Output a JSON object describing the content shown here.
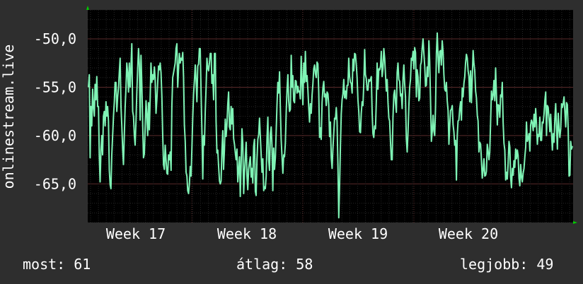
{
  "y_axis_title": "onlinestream.live",
  "stats": {
    "current": "most: 61",
    "average": "átlag: 58",
    "best": "legjobb: 49"
  },
  "colors": {
    "background": "#2e2e2e",
    "plot_background": "#000000",
    "line": "#7ff3b5",
    "grid_minor": "#262626",
    "grid_major": "#5a2a2a",
    "text": "#ffffff",
    "arrow": "#00cc00"
  },
  "chart_data": {
    "type": "line",
    "title": "",
    "xlabel": "",
    "ylabel": "onlinestream.live",
    "x_tick_labels": [
      "Week 17",
      "Week 18",
      "Week 19",
      "Week 20"
    ],
    "y_tick_labels": [
      "-50,0",
      "-55,0",
      "-60,0",
      "-65,0"
    ],
    "y_ticks": [
      -50,
      -55,
      -60,
      -65
    ],
    "ylim": [
      -69,
      -47
    ],
    "grid": true,
    "series": [
      {
        "name": "",
        "values": [
          -55,
          -53.7,
          -62.3,
          -57,
          -59,
          -55.2,
          -57,
          -58,
          -54.7,
          -56.3,
          -53.9,
          -57,
          -57,
          -62,
          -64.8,
          -61.5,
          -60,
          -62,
          -58,
          -57.5,
          -59,
          -56.5,
          -58,
          -57,
          -58.5,
          -63.6,
          -65.1,
          -65.5,
          -62,
          -60,
          -58,
          -56.5,
          -54.5,
          -54.5,
          -57.5,
          -56,
          -55,
          -53.5,
          -52,
          -57,
          -59,
          -61.5,
          -63,
          -60,
          -57,
          -55,
          -52.5,
          -53.5,
          -55.5,
          -52.5,
          -55,
          -53,
          -50.5,
          -57.5,
          -58,
          -60,
          -61,
          -58.5,
          -55.5,
          -53,
          -51,
          -52.6,
          -58.4,
          -51.7,
          -54.8,
          -58.9,
          -62.3,
          -61.9,
          -59.1,
          -56.4,
          -57.9,
          -60,
          -56.6,
          -59.4,
          -56,
          -52.5,
          -54.5,
          -53.7,
          -54.2,
          -52.9,
          -54.1,
          -57.7,
          -56.3,
          -54.5,
          -52.8,
          -53.2,
          -52.5,
          -53.5,
          -56,
          -60,
          -63,
          -63.5,
          -61,
          -62.5,
          -63.9,
          -64,
          -62,
          -62.5,
          -61.7,
          -63.6,
          -57,
          -54,
          -53.5,
          -53,
          -52.5,
          -51,
          -50.5,
          -55,
          -53,
          -51.5,
          -52.5,
          -52,
          -52.2,
          -51.4,
          -53.9,
          -58.9,
          -60.6,
          -63.8,
          -64.2,
          -65.7,
          -66,
          -65,
          -63.2,
          -64.2,
          -61.4,
          -58.2,
          -55.7,
          -54.3,
          -52.7,
          -54.2,
          -56.5,
          -52.8,
          -52.6,
          -51,
          -51,
          -55.5,
          -59.5,
          -64.5,
          -60,
          -61,
          -57.5,
          -55,
          -52,
          -53,
          -53.3,
          -52.5,
          -51.5,
          -51.5,
          -54.6,
          -53.7,
          -56.3,
          -51.5,
          -51.5,
          -58.5,
          -61.8,
          -61.5,
          -63.2,
          -64.7,
          -65,
          -64.7,
          -61.5,
          -59.5,
          -63.5,
          -61.5,
          -58.3,
          -60.1,
          -58.8,
          -56.8,
          -55.5,
          -59.1,
          -59.4,
          -57,
          -58.8,
          -57.2,
          -60.3,
          -60.9,
          -61.8,
          -62.5,
          -61.4,
          -64.8,
          -63.6,
          -62.2,
          -66.3,
          -63,
          -59.3,
          -60.9,
          -66,
          -64,
          -62.3,
          -60.7,
          -64.2,
          -65.6,
          -63.5,
          -62.8,
          -62.2,
          -64.3,
          -63.4,
          -64.9,
          -61.1,
          -60.4,
          -65.8,
          -66.2,
          -62.5,
          -60.4,
          -59.9,
          -58.2,
          -60,
          -61.9,
          -63.8,
          -62.4,
          -65.7,
          -65.3,
          -65.5,
          -64.2,
          -60.2,
          -58.1,
          -62.5,
          -63.6,
          -59.8,
          -59.1,
          -61,
          -65.7,
          -61.3,
          -63.5,
          -62.3,
          -59.7,
          -56.8,
          -54.5,
          -55.6,
          -53.4,
          -57,
          -60.4,
          -62.2,
          -63.9,
          -62,
          -62.2,
          -60.8,
          -57.6,
          -55.2,
          -53.7,
          -56.4,
          -57.5,
          -57.3,
          -51.7,
          -55,
          -53.8,
          -56.4,
          -56.6,
          -54.3,
          -54.4,
          -55.6,
          -54.9,
          -55.5,
          -55.4,
          -56.2,
          -51.8,
          -54.4,
          -56.8,
          -52.5,
          -54.5,
          -51.3,
          -54.4,
          -53.8,
          -55.3,
          -57,
          -58.6,
          -56.7,
          -57.7,
          -55.8,
          -54.7,
          -53.1,
          -52.7,
          -53.6,
          -54,
          -52.4,
          -52.6,
          -55.5,
          -60.2,
          -59.2,
          -60.4,
          -56.6,
          -55.1,
          -54.4,
          -56,
          -55.7,
          -56.9,
          -55.5,
          -55.7,
          -56.8,
          -60.1,
          -58.6,
          -62.3,
          -63.4,
          -61.4,
          -59.8,
          -58.2,
          -58.3,
          -57.1,
          -58.6,
          -63,
          -68.5,
          -65.1,
          -60.9,
          -57.8,
          -56.3,
          -55.7,
          -54.2,
          -56.1,
          -55.4,
          -56.2,
          -54.8,
          -54.8,
          -52,
          -53.9,
          -54.5,
          -54.6,
          -55.6,
          -52.1,
          -53.3,
          -51.5,
          -51.6,
          -52.7,
          -54,
          -56.3,
          -57.5,
          -59.6,
          -59.7,
          -57.7,
          -56.5,
          -56.9,
          -54.6,
          -51.1,
          -53.7,
          -54.1,
          -55.3,
          -55.3,
          -54.2,
          -54.4,
          -54.2,
          -53.9,
          -57.7,
          -59.8,
          -60.2,
          -59,
          -59.3,
          -56.4,
          -52.5,
          -55.2,
          -53.1,
          -53.2,
          -52.8,
          -51.3,
          -53.9,
          -53,
          -51,
          -52,
          -53.6,
          -55.4,
          -54.2,
          -56.6,
          -58.2,
          -58.5,
          -60.6,
          -62.5,
          -62.5,
          -58.2,
          -55.8,
          -55.3,
          -56.6,
          -57.6,
          -53.5,
          -52.5,
          -54.2,
          -54.4,
          -55.9,
          -55.7,
          -57.2,
          -54.2,
          -52.7,
          -54.7,
          -56,
          -60.3,
          -61.7,
          -59.6,
          -56.9,
          -55,
          -54.2,
          -52,
          -52.2,
          -51.3,
          -53.1,
          -50.9,
          -51.4,
          -56,
          -53.2,
          -53.9,
          -56.4,
          -56.1,
          -52.7,
          -52.4,
          -51,
          -50,
          -51.5,
          -52.8,
          -54.9,
          -54.8,
          -52.9,
          -53.9,
          -50.2,
          -52.3,
          -56.3,
          -60.6,
          -59.6,
          -57.9,
          -59.5,
          -60,
          -57,
          -51.5,
          -49.4,
          -51.8,
          -53.5,
          -51.3,
          -51.2,
          -52.7,
          -50.2,
          -51.3,
          -53.7,
          -55.2,
          -55.4,
          -54.5,
          -56.4,
          -57.4,
          -60.9,
          -59,
          -57.4,
          -57.3,
          -56.9,
          -58.9,
          -59.6,
          -61,
          -60.5,
          -64.6,
          -60,
          -58.5,
          -58.4,
          -57.2,
          -56.5,
          -58.4,
          -55.1,
          -56,
          -54.6,
          -53.9,
          -52.5,
          -51.6,
          -52,
          -53.3,
          -53.9,
          -56.5,
          -53.3,
          -56.6,
          -54,
          -51.2,
          -52.5,
          -53.3,
          -55.4,
          -56.1,
          -57.9,
          -58.5,
          -61.7,
          -60.7,
          -60.9,
          -62.6,
          -64.4,
          -63.6,
          -62.4,
          -64.2,
          -64.1,
          -63.7,
          -60.9,
          -61.6,
          -62.5,
          -61.7,
          -58.6,
          -55.4,
          -56.3,
          -55.8,
          -54.3,
          -56.4,
          -53,
          -55.9,
          -58.9,
          -56.8,
          -56.9,
          -58.1,
          -55.8,
          -56,
          -54.5,
          -58.6,
          -60.8,
          -61.5,
          -64.6,
          -63.8,
          -64.5,
          -62.9,
          -60.6,
          -61.2,
          -64.3,
          -65.4,
          -63.4,
          -64.1,
          -62.6,
          -63.3,
          -61.4,
          -62.4,
          -61.5,
          -62.1,
          -64.4,
          -65.2,
          -63,
          -64.3,
          -64.8,
          -63.9,
          -63.4,
          -62.2,
          -61.2,
          -58.6,
          -60.6,
          -60.3,
          -59.8,
          -61.6,
          -58.9,
          -58.4,
          -58.7,
          -59.5,
          -57.8,
          -59.1,
          -57.2,
          -58.8,
          -60.9,
          -59.9,
          -60.1,
          -58.1,
          -60.5,
          -60.5,
          -58.6,
          -58.7,
          -57.8,
          -56.4,
          -55.5,
          -60,
          -56.9,
          -57.1,
          -58.3,
          -59.6,
          -57.8,
          -59.7,
          -61.5,
          -59.8,
          -60.7,
          -58.3,
          -56.7,
          -59.2,
          -61.4,
          -57.7,
          -59.2,
          -60.2,
          -59.3,
          -56.7,
          -57.1,
          -56.7,
          -56,
          -57.6,
          -59.1,
          -56.6,
          -56.8,
          -59.5,
          -64.2,
          -64.1,
          -60.6,
          -61.4,
          -61.1
        ]
      }
    ]
  }
}
